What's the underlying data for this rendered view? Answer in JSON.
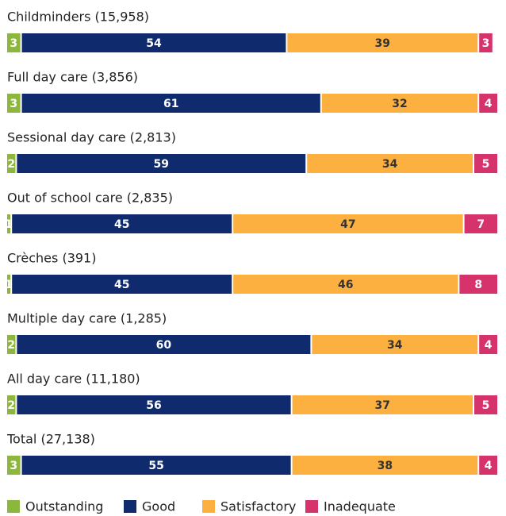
{
  "chart_data": {
    "type": "stacked_barh",
    "categories": [
      "Childminders (15,958)",
      "Full day care (3,856)",
      "Sessional day care (2,813)",
      "Out of school care (2,835)",
      "Crèches (391)",
      "Multiple day care (1,285)",
      "All day care (11,180)",
      "Total (27,138)"
    ],
    "series": [
      {
        "name": "Outstanding",
        "color": "#8cb63c",
        "values": [
          3,
          3,
          2,
          1,
          1,
          2,
          2,
          3
        ]
      },
      {
        "name": "Good",
        "color": "#0f2b6e",
        "values": [
          54,
          61,
          59,
          45,
          45,
          60,
          56,
          55
        ]
      },
      {
        "name": "Satisfactory",
        "color": "#fbb040",
        "values": [
          39,
          32,
          34,
          47,
          46,
          34,
          37,
          38
        ]
      },
      {
        "name": "Inadequate",
        "color": "#d6336c",
        "values": [
          3,
          4,
          5,
          7,
          8,
          4,
          5,
          4
        ]
      }
    ],
    "xlim": [
      0,
      100
    ],
    "legend": "bottom-left"
  }
}
